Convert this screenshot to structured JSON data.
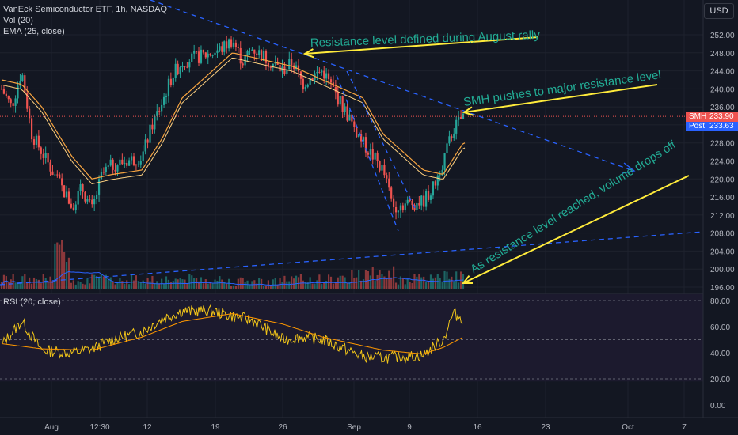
{
  "header": {
    "title": "VanEck Semiconductor ETF, 1h, NASDAQ",
    "vol_label": "Vol (20)",
    "ema_label": "EMA (25, close)",
    "rsi_label": "RSI (20, close)",
    "currency": "USD"
  },
  "price_tags": {
    "smh_label": "SMH",
    "smh_value": "233.90",
    "post_label": "Post",
    "post_value": "233.63"
  },
  "annotations": [
    "Resistance level defined during August rally",
    "SMH pushes to major resistance level",
    "As resistance level reached, volume drops off"
  ],
  "colors": {
    "background": "#131722",
    "up": "#26a69a",
    "down": "#ef5350",
    "annotation_text": "#22ab94",
    "arrow": "#ffeb3b",
    "trend": "#2962ff",
    "ema": "#f7a440",
    "rsi": "#f0c419",
    "rsi_ma": "#ff9800",
    "vol_ma": "#2962ff",
    "last_price": "#ef5350",
    "post": "#2962ff"
  },
  "chart_data": [
    {
      "type": "candlestick",
      "title": "VanEck Semiconductor ETF, 1h, NASDAQ",
      "x_tick_labels": [
        "Aug",
        "12:30",
        "12",
        "19",
        "26",
        "Sep",
        "9",
        "16",
        "23",
        "Oct",
        "7"
      ],
      "y_tick_labels": [
        "196.00",
        "200.00",
        "204.00",
        "208.00",
        "212.00",
        "216.00",
        "220.00",
        "224.00",
        "228.00",
        "232.00",
        "236.00",
        "240.00",
        "244.00",
        "248.00",
        "252.00"
      ],
      "ylim": [
        194,
        255
      ],
      "grid": true,
      "last_price": 233.9,
      "post_price": 233.63,
      "close_points": [
        {
          "x": "Jul 29",
          "y": 240
        },
        {
          "x": "Jul 30",
          "y": 236
        },
        {
          "x": "Jul 31",
          "y": 244
        },
        {
          "x": "Aug 1",
          "y": 230
        },
        {
          "x": "Aug 2",
          "y": 226
        },
        {
          "x": "Aug 5",
          "y": 214
        },
        {
          "x": "Aug 6",
          "y": 218
        },
        {
          "x": "Aug 7",
          "y": 213
        },
        {
          "x": "Aug 8",
          "y": 221
        },
        {
          "x": "Aug 9",
          "y": 223
        },
        {
          "x": "Aug 12",
          "y": 225
        },
        {
          "x": "Aug 13",
          "y": 232
        },
        {
          "x": "Aug 14",
          "y": 237
        },
        {
          "x": "Aug 15",
          "y": 243
        },
        {
          "x": "Aug 16",
          "y": 246
        },
        {
          "x": "Aug 19",
          "y": 248
        },
        {
          "x": "Aug 20",
          "y": 249
        },
        {
          "x": "Aug 21",
          "y": 251
        },
        {
          "x": "Aug 22",
          "y": 246
        },
        {
          "x": "Aug 23",
          "y": 249
        },
        {
          "x": "Aug 26",
          "y": 244
        },
        {
          "x": "Aug 27",
          "y": 246
        },
        {
          "x": "Aug 28",
          "y": 241
        },
        {
          "x": "Aug 29",
          "y": 243
        },
        {
          "x": "Aug 30",
          "y": 244
        },
        {
          "x": "Sep 3",
          "y": 228
        },
        {
          "x": "Sep 4",
          "y": 225
        },
        {
          "x": "Sep 5",
          "y": 222
        },
        {
          "x": "Sep 6",
          "y": 214
        },
        {
          "x": "Sep 9",
          "y": 215
        },
        {
          "x": "Sep 10",
          "y": 218
        },
        {
          "x": "Sep 11",
          "y": 224
        },
        {
          "x": "Sep 12",
          "y": 231
        },
        {
          "x": "Sep 13",
          "y": 234
        }
      ],
      "ema_points": [
        {
          "x": "Jul 29",
          "y": 242
        },
        {
          "x": "Jul 31",
          "y": 241
        },
        {
          "x": "Aug 2",
          "y": 236
        },
        {
          "x": "Aug 5",
          "y": 225
        },
        {
          "x": "Aug 7",
          "y": 220
        },
        {
          "x": "Aug 9",
          "y": 221
        },
        {
          "x": "Aug 12",
          "y": 222
        },
        {
          "x": "Aug 14",
          "y": 229
        },
        {
          "x": "Aug 16",
          "y": 238
        },
        {
          "x": "Aug 19",
          "y": 244
        },
        {
          "x": "Aug 21",
          "y": 248
        },
        {
          "x": "Aug 23",
          "y": 247
        },
        {
          "x": "Aug 27",
          "y": 245
        },
        {
          "x": "Aug 29",
          "y": 243
        },
        {
          "x": "Sep 3",
          "y": 238
        },
        {
          "x": "Sep 5",
          "y": 230
        },
        {
          "x": "Sep 9",
          "y": 222
        },
        {
          "x": "Sep 11",
          "y": 221
        },
        {
          "x": "Sep 13",
          "y": 228
        }
      ],
      "volume_points": [
        {
          "x": "Aug 5",
          "y": "high"
        },
        {
          "x": "Sep 13",
          "y": "low"
        }
      ],
      "rsi": {
        "label": "RSI (20, close)",
        "y_tick_labels": [
          "80.00",
          "60.00",
          "40.00",
          "20.00",
          "0.00"
        ],
        "ylim": [
          -5,
          85
        ],
        "bands": [
          30,
          70
        ],
        "middle": 50,
        "points": [
          {
            "x": "Jul 29",
            "y": 46
          },
          {
            "x": "Jul 31",
            "y": 64
          },
          {
            "x": "Aug 2",
            "y": 42
          },
          {
            "x": "Aug 5",
            "y": 40
          },
          {
            "x": "Aug 7",
            "y": 43
          },
          {
            "x": "Aug 9",
            "y": 50
          },
          {
            "x": "Aug 12",
            "y": 56
          },
          {
            "x": "Aug 14",
            "y": 66
          },
          {
            "x": "Aug 16",
            "y": 72
          },
          {
            "x": "Aug 19",
            "y": 72
          },
          {
            "x": "Aug 21",
            "y": 68
          },
          {
            "x": "Aug 23",
            "y": 65
          },
          {
            "x": "Aug 26",
            "y": 50
          },
          {
            "x": "Aug 28",
            "y": 52
          },
          {
            "x": "Aug 30",
            "y": 50
          },
          {
            "x": "Sep 3",
            "y": 37
          },
          {
            "x": "Sep 5",
            "y": 36
          },
          {
            "x": "Sep 9",
            "y": 38
          },
          {
            "x": "Sep 11",
            "y": 50
          },
          {
            "x": "Sep 12",
            "y": 70
          },
          {
            "x": "Sep 13",
            "y": 66
          }
        ],
        "ma_points": [
          {
            "x": "Jul 29",
            "y": 47
          },
          {
            "x": "Aug 2",
            "y": 43
          },
          {
            "x": "Aug 7",
            "y": 42
          },
          {
            "x": "Aug 12",
            "y": 52
          },
          {
            "x": "Aug 16",
            "y": 64
          },
          {
            "x": "Aug 21",
            "y": 70
          },
          {
            "x": "Aug 26",
            "y": 62
          },
          {
            "x": "Aug 30",
            "y": 52
          },
          {
            "x": "Sep 5",
            "y": 42
          },
          {
            "x": "Sep 9",
            "y": 39
          },
          {
            "x": "Sep 11",
            "y": 44
          },
          {
            "x": "Sep 13",
            "y": 52
          }
        ]
      }
    }
  ]
}
